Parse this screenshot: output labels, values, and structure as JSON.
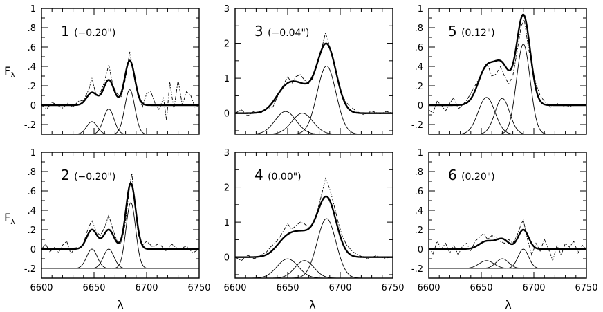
{
  "chart_data": {
    "type": "line",
    "xlabel": "λ",
    "ylabel": "F",
    "ylabel_sub": "λ",
    "xlim": [
      6600,
      6750
    ],
    "xticks": [
      "6600",
      "6650",
      "6700",
      "6750"
    ],
    "line_centers": [
      6648,
      6664,
      6684
    ],
    "panels": [
      {
        "id": "1",
        "offset": "(−0.20\")",
        "ylim": [
          -0.3,
          1.0
        ],
        "yticks": [
          {
            "v": -0.2,
            "t": "-.2"
          },
          {
            "v": 0,
            "t": "0"
          },
          {
            "v": 0.2,
            "t": ".2"
          },
          {
            "v": 0.4,
            "t": ".4"
          },
          {
            "v": 0.6,
            "t": ".6"
          },
          {
            "v": 0.8,
            "t": ".8"
          },
          {
            "v": 1,
            "t": "1"
          }
        ],
        "baseline": 0,
        "component_base": -0.3,
        "components": [
          {
            "center": 6648,
            "amp": 0.13,
            "sigma": 5
          },
          {
            "center": 6664,
            "amp": 0.26,
            "sigma": 5
          },
          {
            "center": 6684,
            "amp": 0.46,
            "sigma": 4.8
          }
        ],
        "observed": [
          [
            6600,
            0.0
          ],
          [
            6605,
            -0.04
          ],
          [
            6610,
            0.03
          ],
          [
            6615,
            0.0
          ],
          [
            6620,
            -0.03
          ],
          [
            6625,
            0.02
          ],
          [
            6630,
            -0.02
          ],
          [
            6635,
            0.04
          ],
          [
            6640,
            0.05
          ],
          [
            6645,
            0.16
          ],
          [
            6648,
            0.28
          ],
          [
            6652,
            0.1
          ],
          [
            6656,
            0.13
          ],
          [
            6660,
            0.24
          ],
          [
            6664,
            0.42
          ],
          [
            6668,
            0.2
          ],
          [
            6672,
            0.12
          ],
          [
            6676,
            0.08
          ],
          [
            6680,
            0.28
          ],
          [
            6684,
            0.55
          ],
          [
            6688,
            0.3
          ],
          [
            6692,
            0.08
          ],
          [
            6696,
            -0.02
          ],
          [
            6700,
            0.12
          ],
          [
            6704,
            0.14
          ],
          [
            6708,
            0.02
          ],
          [
            6712,
            -0.05
          ],
          [
            6716,
            0.08
          ],
          [
            6719,
            -0.16
          ],
          [
            6722,
            0.24
          ],
          [
            6726,
            -0.04
          ],
          [
            6730,
            0.26
          ],
          [
            6734,
            0.0
          ],
          [
            6738,
            0.14
          ],
          [
            6742,
            0.1
          ],
          [
            6746,
            -0.02
          ],
          [
            6750,
            0.0
          ]
        ]
      },
      {
        "id": "3",
        "offset": "(−0.04\")",
        "ylim": [
          -0.6,
          3.0
        ],
        "yticks": [
          {
            "v": 0,
            "t": "0"
          },
          {
            "v": 1,
            "t": "1"
          },
          {
            "v": 2,
            "t": "2"
          },
          {
            "v": 3,
            "t": "3"
          }
        ],
        "baseline": 0,
        "component_base": -0.6,
        "components": [
          {
            "center": 6648,
            "amp": 0.65,
            "sigma": 10
          },
          {
            "center": 6664,
            "amp": 0.6,
            "sigma": 10
          },
          {
            "center": 6687,
            "amp": 1.95,
            "sigma": 9
          }
        ],
        "observed": [
          [
            6600,
            0.0
          ],
          [
            6606,
            0.1
          ],
          [
            6612,
            -0.08
          ],
          [
            6618,
            0.06
          ],
          [
            6624,
            0.0
          ],
          [
            6630,
            0.12
          ],
          [
            6636,
            0.18
          ],
          [
            6640,
            0.45
          ],
          [
            6645,
            0.75
          ],
          [
            6650,
            1.05
          ],
          [
            6654,
            0.85
          ],
          [
            6658,
            1.05
          ],
          [
            6662,
            1.1
          ],
          [
            6666,
            0.95
          ],
          [
            6670,
            0.85
          ],
          [
            6674,
            1.0
          ],
          [
            6678,
            1.4
          ],
          [
            6682,
            1.8
          ],
          [
            6686,
            2.3
          ],
          [
            6690,
            1.9
          ],
          [
            6694,
            1.4
          ],
          [
            6698,
            0.9
          ],
          [
            6702,
            0.5
          ],
          [
            6706,
            0.3
          ],
          [
            6710,
            0.18
          ],
          [
            6716,
            0.05
          ],
          [
            6722,
            -0.04
          ],
          [
            6730,
            0.06
          ],
          [
            6738,
            -0.02
          ],
          [
            6744,
            0.05
          ],
          [
            6750,
            0.0
          ]
        ]
      },
      {
        "id": "5",
        "offset": "(0.12\")",
        "ylim": [
          -0.3,
          1.0
        ],
        "yticks": [
          {
            "v": -0.2,
            "t": "-.2"
          },
          {
            "v": 0,
            "t": "0"
          },
          {
            "v": 0.2,
            "t": ".2"
          },
          {
            "v": 0.4,
            "t": ".4"
          },
          {
            "v": 0.6,
            "t": ".6"
          },
          {
            "v": 0.8,
            "t": ".8"
          },
          {
            "v": 1,
            "t": "1"
          }
        ],
        "baseline": 0,
        "component_base": -0.3,
        "components": [
          {
            "center": 6655,
            "amp": 0.38,
            "sigma": 8
          },
          {
            "center": 6670,
            "amp": 0.37,
            "sigma": 7
          },
          {
            "center": 6690,
            "amp": 0.93,
            "sigma": 6.5
          }
        ],
        "observed": [
          [
            6600,
            -0.05
          ],
          [
            6604,
            -0.08
          ],
          [
            6608,
            0.04
          ],
          [
            6612,
            0.0
          ],
          [
            6616,
            -0.06
          ],
          [
            6620,
            0.02
          ],
          [
            6624,
            0.08
          ],
          [
            6628,
            -0.04
          ],
          [
            6632,
            0.0
          ],
          [
            6636,
            0.05
          ],
          [
            6640,
            0.12
          ],
          [
            6644,
            0.2
          ],
          [
            6648,
            0.28
          ],
          [
            6652,
            0.36
          ],
          [
            6656,
            0.42
          ],
          [
            6660,
            0.3
          ],
          [
            6664,
            0.32
          ],
          [
            6668,
            0.4
          ],
          [
            6672,
            0.3
          ],
          [
            6676,
            0.22
          ],
          [
            6680,
            0.3
          ],
          [
            6684,
            0.55
          ],
          [
            6688,
            0.82
          ],
          [
            6691,
            0.88
          ],
          [
            6694,
            0.65
          ],
          [
            6698,
            0.4
          ],
          [
            6702,
            0.22
          ],
          [
            6706,
            0.1
          ],
          [
            6710,
            0.04
          ],
          [
            6716,
            -0.02
          ],
          [
            6722,
            0.02
          ],
          [
            6730,
            -0.02
          ],
          [
            6740,
            0.0
          ],
          [
            6750,
            0.0
          ]
        ]
      },
      {
        "id": "2",
        "offset": "(−0.20\")",
        "ylim": [
          -0.3,
          1.0
        ],
        "yticks": [
          {
            "v": -0.2,
            "t": "-.2"
          },
          {
            "v": 0,
            "t": "0"
          },
          {
            "v": 0.2,
            "t": ".2"
          },
          {
            "v": 0.4,
            "t": ".4"
          },
          {
            "v": 0.6,
            "t": ".6"
          },
          {
            "v": 0.8,
            "t": ".8"
          },
          {
            "v": 1,
            "t": "1"
          }
        ],
        "baseline": 0,
        "component_base": -0.2,
        "components": [
          {
            "center": 6648,
            "amp": 0.2,
            "sigma": 5
          },
          {
            "center": 6664,
            "amp": 0.2,
            "sigma": 5
          },
          {
            "center": 6685,
            "amp": 0.68,
            "sigma": 4.6
          }
        ],
        "observed": [
          [
            6600,
            0.0
          ],
          [
            6604,
            0.05
          ],
          [
            6608,
            -0.03
          ],
          [
            6612,
            0.02
          ],
          [
            6616,
            -0.04
          ],
          [
            6620,
            0.04
          ],
          [
            6624,
            0.08
          ],
          [
            6628,
            -0.05
          ],
          [
            6632,
            0.02
          ],
          [
            6636,
            0.0
          ],
          [
            6640,
            0.06
          ],
          [
            6644,
            0.2
          ],
          [
            6648,
            0.3
          ],
          [
            6652,
            0.18
          ],
          [
            6656,
            0.14
          ],
          [
            6660,
            0.22
          ],
          [
            6664,
            0.35
          ],
          [
            6668,
            0.2
          ],
          [
            6672,
            0.08
          ],
          [
            6676,
            0.06
          ],
          [
            6680,
            0.28
          ],
          [
            6684,
            0.66
          ],
          [
            6686,
            0.78
          ],
          [
            6689,
            0.45
          ],
          [
            6692,
            0.15
          ],
          [
            6696,
            0.04
          ],
          [
            6700,
            0.08
          ],
          [
            6706,
            0.02
          ],
          [
            6712,
            0.06
          ],
          [
            6718,
            -0.02
          ],
          [
            6724,
            0.05
          ],
          [
            6730,
            0.0
          ],
          [
            6738,
            0.03
          ],
          [
            6744,
            -0.04
          ],
          [
            6750,
            0.0
          ]
        ]
      },
      {
        "id": "4",
        "offset": "(0.00\")",
        "ylim": [
          -0.6,
          3.0
        ],
        "yticks": [
          {
            "v": 0,
            "t": "0"
          },
          {
            "v": 1,
            "t": "1"
          },
          {
            "v": 2,
            "t": "2"
          },
          {
            "v": 3,
            "t": "3"
          }
        ],
        "baseline": 0,
        "component_base": -0.6,
        "components": [
          {
            "center": 6650,
            "amp": 0.55,
            "sigma": 10
          },
          {
            "center": 6666,
            "amp": 0.5,
            "sigma": 9
          },
          {
            "center": 6687,
            "amp": 1.7,
            "sigma": 9
          }
        ],
        "observed": [
          [
            6600,
            0.0
          ],
          [
            6606,
            -0.1
          ],
          [
            6612,
            0.06
          ],
          [
            6618,
            -0.05
          ],
          [
            6624,
            0.04
          ],
          [
            6630,
            0.15
          ],
          [
            6634,
            0.3
          ],
          [
            6638,
            0.4
          ],
          [
            6642,
            0.55
          ],
          [
            6646,
            0.75
          ],
          [
            6650,
            0.95
          ],
          [
            6654,
            0.8
          ],
          [
            6658,
            0.9
          ],
          [
            6662,
            1.0
          ],
          [
            6666,
            0.95
          ],
          [
            6670,
            0.85
          ],
          [
            6674,
            0.95
          ],
          [
            6678,
            1.3
          ],
          [
            6682,
            1.75
          ],
          [
            6686,
            2.25
          ],
          [
            6690,
            1.95
          ],
          [
            6694,
            1.5
          ],
          [
            6698,
            1.0
          ],
          [
            6702,
            0.6
          ],
          [
            6706,
            0.35
          ],
          [
            6712,
            0.15
          ],
          [
            6718,
            0.05
          ],
          [
            6726,
            -0.05
          ],
          [
            6734,
            0.04
          ],
          [
            6742,
            -0.03
          ],
          [
            6750,
            0.0
          ]
        ]
      },
      {
        "id": "6",
        "offset": "(0.20\")",
        "ylim": [
          -0.3,
          1.0
        ],
        "yticks": [
          {
            "v": -0.2,
            "t": "-.2"
          },
          {
            "v": 0,
            "t": "0"
          },
          {
            "v": 0.2,
            "t": ".2"
          },
          {
            "v": 0.4,
            "t": ".4"
          },
          {
            "v": 0.6,
            "t": ".6"
          },
          {
            "v": 0.8,
            "t": ".8"
          },
          {
            "v": 1,
            "t": "1"
          }
        ],
        "baseline": 0,
        "component_base": -0.2,
        "components": [
          {
            "center": 6655,
            "amp": 0.08,
            "sigma": 7
          },
          {
            "center": 6670,
            "amp": 0.1,
            "sigma": 6
          },
          {
            "center": 6690,
            "amp": 0.2,
            "sigma": 5
          }
        ],
        "observed": [
          [
            6600,
            0.02
          ],
          [
            6604,
            -0.05
          ],
          [
            6608,
            0.08
          ],
          [
            6612,
            0.0
          ],
          [
            6616,
            0.06
          ],
          [
            6620,
            -0.04
          ],
          [
            6624,
            0.04
          ],
          [
            6628,
            -0.06
          ],
          [
            6632,
            0.03
          ],
          [
            6636,
            0.06
          ],
          [
            6640,
            -0.02
          ],
          [
            6644,
            0.08
          ],
          [
            6648,
            0.12
          ],
          [
            6652,
            0.16
          ],
          [
            6656,
            0.1
          ],
          [
            6660,
            0.14
          ],
          [
            6664,
            0.12
          ],
          [
            6668,
            0.08
          ],
          [
            6672,
            0.06
          ],
          [
            6676,
            0.1
          ],
          [
            6680,
            0.06
          ],
          [
            6684,
            0.14
          ],
          [
            6688,
            0.26
          ],
          [
            6690,
            0.3
          ],
          [
            6694,
            0.1
          ],
          [
            6698,
            -0.06
          ],
          [
            6702,
            0.06
          ],
          [
            6706,
            -0.02
          ],
          [
            6710,
            0.1
          ],
          [
            6714,
            0.0
          ],
          [
            6718,
            -0.12
          ],
          [
            6722,
            0.04
          ],
          [
            6726,
            -0.06
          ],
          [
            6730,
            0.06
          ],
          [
            6734,
            0.02
          ],
          [
            6738,
            0.08
          ],
          [
            6742,
            -0.04
          ],
          [
            6746,
            0.04
          ],
          [
            6750,
            0.0
          ]
        ]
      }
    ]
  }
}
